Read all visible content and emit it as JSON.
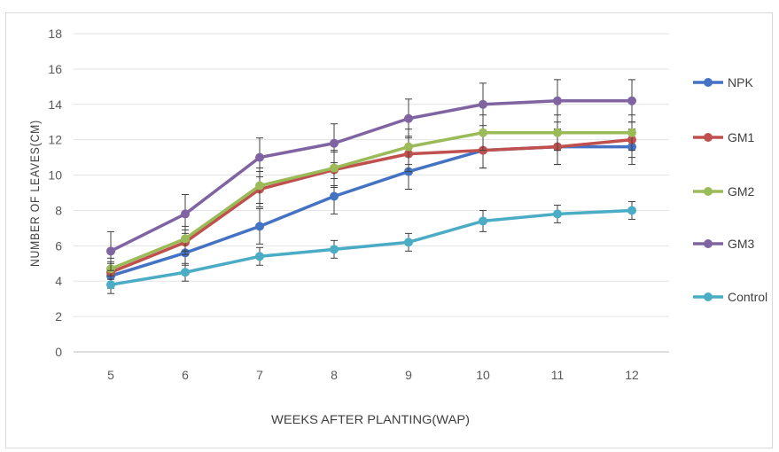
{
  "chart_data": {
    "type": "line",
    "title": "",
    "xlabel": "WEEKS AFTER PLANTING(WAP)",
    "ylabel": "NUMBER OF LEAVES(CM)",
    "categories": [
      "5",
      "6",
      "7",
      "8",
      "9",
      "10",
      "11",
      "12"
    ],
    "ylim": [
      0,
      18
    ],
    "yticks": [
      "0",
      "2",
      "4",
      "6",
      "8",
      "10",
      "12",
      "14",
      "16",
      "18"
    ],
    "grid": "horizontal",
    "legend_position": "right",
    "error_bars": true,
    "series": [
      {
        "name": "NPK",
        "color": "#4472c4",
        "values": [
          4.3,
          5.6,
          7.1,
          8.8,
          10.2,
          11.4,
          11.6,
          11.6
        ],
        "errors": [
          0.7,
          0.7,
          1.0,
          1.0,
          1.0,
          1.0,
          1.0,
          1.0
        ]
      },
      {
        "name": "GM1",
        "color": "#c0504d",
        "values": [
          4.5,
          6.2,
          9.2,
          10.3,
          11.2,
          11.4,
          11.6,
          12.0
        ],
        "errors": [
          0.6,
          0.7,
          1.0,
          1.0,
          1.0,
          1.0,
          1.0,
          1.0
        ]
      },
      {
        "name": "GM2",
        "color": "#9bbb59",
        "values": [
          4.7,
          6.4,
          9.4,
          10.4,
          11.6,
          12.4,
          12.4,
          12.4
        ],
        "errors": [
          0.6,
          0.7,
          1.0,
          1.0,
          1.0,
          1.0,
          1.0,
          1.0
        ]
      },
      {
        "name": "GM3",
        "color": "#8064a2",
        "values": [
          5.7,
          7.8,
          11.0,
          11.8,
          13.2,
          14.0,
          14.2,
          14.2
        ],
        "errors": [
          1.1,
          1.1,
          1.1,
          1.1,
          1.1,
          1.2,
          1.2,
          1.2
        ]
      },
      {
        "name": "Control",
        "color": "#4bacc6",
        "values": [
          3.8,
          4.5,
          5.4,
          5.8,
          6.2,
          7.4,
          7.8,
          8.0
        ],
        "errors": [
          0.5,
          0.5,
          0.5,
          0.5,
          0.5,
          0.6,
          0.5,
          0.5
        ]
      }
    ]
  }
}
